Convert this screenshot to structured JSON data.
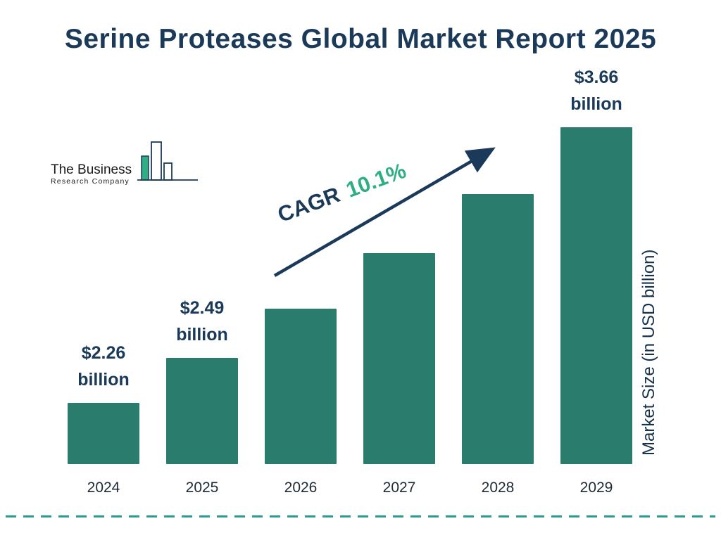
{
  "title": "Serine Proteases Global Market Report 2025",
  "logo": {
    "line1": "The Business",
    "line2": "Research Company"
  },
  "annotation": {
    "label": "CAGR",
    "value": "10.1%"
  },
  "y_axis_label": "Market Size (in USD billion)",
  "colors": {
    "bar": "#2A7C6C",
    "navy": "#1B3A5A",
    "green": "#2FAE83",
    "dashed_line": "#2A9D8F"
  },
  "chart_data": {
    "type": "bar",
    "title": "Serine Proteases Global Market Report 2025",
    "categories": [
      "2024",
      "2025",
      "2026",
      "2027",
      "2028",
      "2029"
    ],
    "values": [
      2.26,
      2.49,
      2.74,
      3.02,
      3.32,
      3.66
    ],
    "value_labels": [
      {
        "category": "2024",
        "amount": "$2.26",
        "unit": "billion"
      },
      {
        "category": "2025",
        "amount": "$2.49",
        "unit": "billion"
      },
      {
        "category": "2029",
        "amount": "$3.66",
        "unit": "billion"
      }
    ],
    "xlabel": "",
    "ylabel": "Market Size (in USD billion)",
    "annotation": "CAGR 10.1%",
    "legend": false,
    "grid": false,
    "bar_color": "#2A7C6C"
  }
}
